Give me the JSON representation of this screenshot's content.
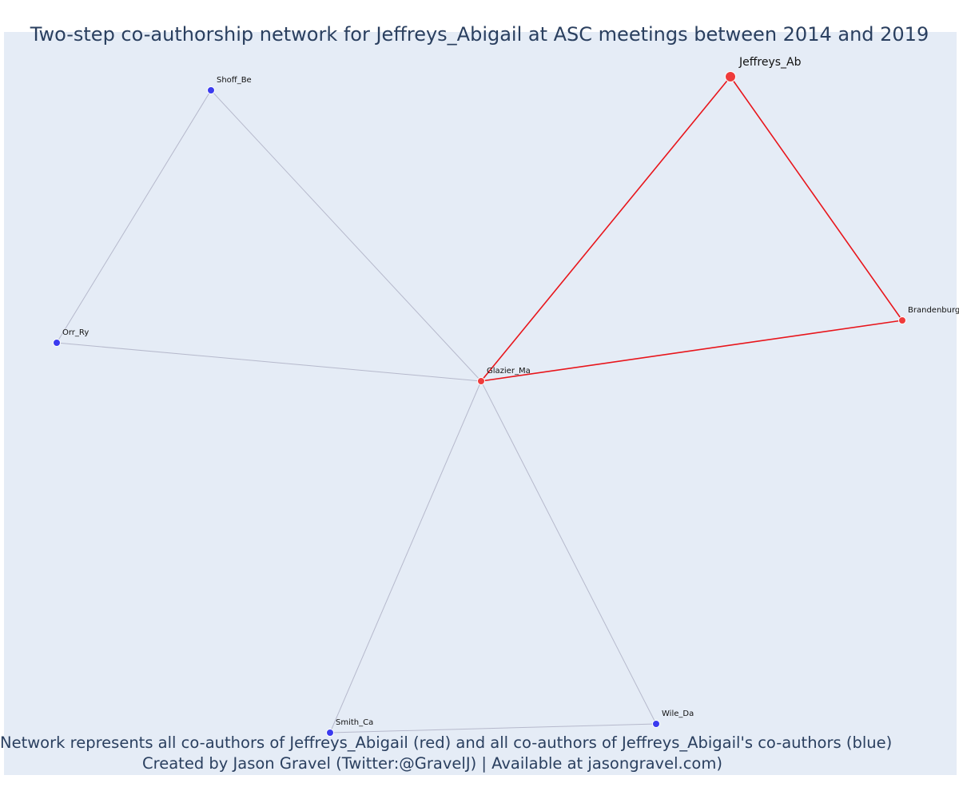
{
  "title": "Two-step co-authorship network for Jeffreys_Abigail at ASC meetings between 2014 and 2019",
  "caption": {
    "line1": "Network represents all co-authors of Jeffreys_Abigail (red) and all co-authors of Jeffreys_Abigail's co-authors (blue)",
    "line2": "Created by Jason Gravel (Twitter:@GravelJ) | Available at jasongravel.com)"
  },
  "colors": {
    "plot_background": "#e5ecf6",
    "first_degree": "#ef3b3b",
    "second_degree": "#3b3bef",
    "first_degree_edge": "#e8151b",
    "second_degree_edge": "#b6b9cc"
  },
  "nodes": [
    {
      "id": "Jeffreys_Ab",
      "label": "Jeffreys_Ab",
      "group": "focal"
    },
    {
      "id": "Glazier_Ma",
      "label": "Glazier_Ma",
      "group": "first_degree"
    },
    {
      "id": "Brandenburg",
      "label": "Brandenburg",
      "group": "first_degree"
    },
    {
      "id": "Shoff_Be",
      "label": "Shoff_Be",
      "group": "second_degree"
    },
    {
      "id": "Orr_Ry",
      "label": "Orr_Ry",
      "group": "second_degree"
    },
    {
      "id": "Smith_Ca",
      "label": "Smith_Ca",
      "group": "second_degree"
    },
    {
      "id": "Wile_Da",
      "label": "Wile_Da",
      "group": "second_degree"
    }
  ],
  "edges": [
    {
      "source": "Jeffreys_Ab",
      "target": "Glazier_Ma",
      "group": "first_degree"
    },
    {
      "source": "Jeffreys_Ab",
      "target": "Brandenburg",
      "group": "first_degree"
    },
    {
      "source": "Glazier_Ma",
      "target": "Brandenburg",
      "group": "first_degree"
    },
    {
      "source": "Glazier_Ma",
      "target": "Shoff_Be",
      "group": "second_degree"
    },
    {
      "source": "Glazier_Ma",
      "target": "Orr_Ry",
      "group": "second_degree"
    },
    {
      "source": "Glazier_Ma",
      "target": "Smith_Ca",
      "group": "second_degree"
    },
    {
      "source": "Glazier_Ma",
      "target": "Wile_Da",
      "group": "second_degree"
    },
    {
      "source": "Shoff_Be",
      "target": "Orr_Ry",
      "group": "second_degree"
    },
    {
      "source": "Smith_Ca",
      "target": "Wile_Da",
      "group": "second_degree"
    }
  ]
}
